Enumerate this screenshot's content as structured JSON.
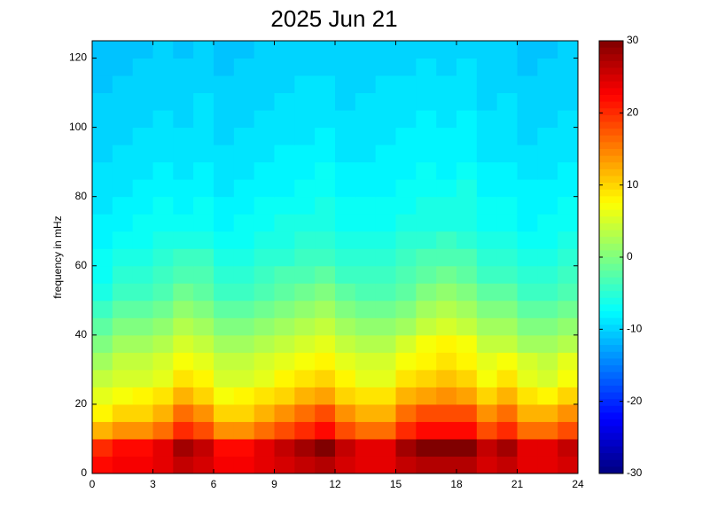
{
  "chart_data": {
    "type": "heatmap",
    "title": "2025 Jun 21",
    "ylabel": "frequency in mHz",
    "colormap": "jet",
    "x": [
      0.5,
      1.5,
      2.5,
      3.5,
      4.5,
      5.5,
      6.5,
      7.5,
      8.5,
      9.5,
      10.5,
      11.5,
      12.5,
      13.5,
      14.5,
      15.5,
      16.5,
      17.5,
      18.5,
      19.5,
      20.5,
      21.5,
      22.5,
      23.5
    ],
    "y": [
      2.5,
      7.5,
      12.5,
      17.5,
      22.5,
      27.5,
      32.5,
      37.5,
      42.5,
      47.5,
      52.5,
      57.5,
      62.5,
      67.5,
      72.5,
      77.5,
      82.5,
      87.5,
      92.5,
      97.5,
      102.5,
      107.5,
      112.5,
      117.5,
      122.5
    ],
    "z": [
      [
        22,
        23,
        23,
        24,
        26,
        25,
        23,
        23,
        24,
        25,
        26,
        27,
        25,
        24,
        24,
        26,
        27,
        27,
        27,
        25,
        26,
        24,
        24,
        25
      ],
      [
        20,
        22,
        22,
        24,
        28,
        26,
        22,
        22,
        24,
        26,
        28,
        30,
        26,
        24,
        24,
        28,
        30,
        30,
        30,
        26,
        28,
        24,
        24,
        26
      ],
      [
        12,
        14,
        14,
        16,
        20,
        18,
        14,
        14,
        16,
        18,
        20,
        22,
        18,
        16,
        16,
        20,
        22,
        22,
        22,
        18,
        20,
        16,
        16,
        18
      ],
      [
        8,
        10,
        10,
        12,
        16,
        14,
        10,
        10,
        12,
        14,
        16,
        18,
        14,
        12,
        12,
        16,
        18,
        18,
        18,
        14,
        16,
        12,
        12,
        14
      ],
      [
        6,
        7,
        8,
        9,
        12,
        10,
        7,
        8,
        9,
        10,
        12,
        13,
        10,
        9,
        9,
        12,
        13,
        14,
        13,
        10,
        12,
        9,
        8,
        10
      ],
      [
        4,
        5,
        5,
        6,
        9,
        8,
        5,
        5,
        6,
        8,
        9,
        10,
        8,
        6,
        6,
        9,
        10,
        11,
        10,
        7,
        9,
        6,
        5,
        7
      ],
      [
        2,
        4,
        4,
        5,
        7,
        6,
        4,
        4,
        5,
        6,
        7,
        8,
        6,
        5,
        5,
        7,
        8,
        9,
        8,
        6,
        7,
        5,
        4,
        6
      ],
      [
        0,
        2,
        2,
        3,
        5,
        4,
        2,
        2,
        3,
        4,
        5,
        6,
        4,
        3,
        3,
        5,
        7,
        8,
        7,
        4,
        4,
        2,
        2,
        3
      ],
      [
        -2,
        0,
        0,
        1,
        3,
        2,
        0,
        0,
        1,
        2,
        3,
        4,
        2,
        1,
        1,
        2,
        4,
        5,
        4,
        2,
        2,
        0,
        0,
        1
      ],
      [
        -4,
        -2,
        -2,
        -1,
        1,
        0,
        -2,
        -2,
        -1,
        0,
        1,
        2,
        0,
        -1,
        -1,
        0,
        2,
        3,
        2,
        0,
        0,
        -2,
        -2,
        -1
      ],
      [
        -6,
        -4,
        -4,
        -3,
        -1,
        -2,
        -4,
        -4,
        -3,
        -2,
        -1,
        0,
        -2,
        -3,
        -3,
        -2,
        0,
        1,
        0,
        -2,
        -2,
        -4,
        -4,
        -3
      ],
      [
        -7,
        -5,
        -5,
        -4,
        -3,
        -3,
        -5,
        -5,
        -4,
        -3,
        -3,
        -2,
        -4,
        -4,
        -4,
        -3,
        -2,
        -1,
        -2,
        -4,
        -4,
        -5,
        -5,
        -4
      ],
      [
        -7,
        -6,
        -6,
        -5,
        -4,
        -4,
        -6,
        -6,
        -5,
        -5,
        -4,
        -4,
        -5,
        -5,
        -5,
        -4,
        -3,
        -3,
        -3,
        -5,
        -5,
        -6,
        -6,
        -5
      ],
      [
        -8,
        -7,
        -7,
        -6,
        -6,
        -6,
        -7,
        -7,
        -6,
        -6,
        -5,
        -5,
        -6,
        -6,
        -6,
        -5,
        -5,
        -4,
        -5,
        -6,
        -6,
        -7,
        -7,
        -6
      ],
      [
        -8,
        -8,
        -7,
        -7,
        -7,
        -7,
        -8,
        -7,
        -7,
        -6,
        -6,
        -6,
        -7,
        -7,
        -7,
        -6,
        -6,
        -6,
        -6,
        -7,
        -7,
        -8,
        -7,
        -7
      ],
      [
        -9,
        -8,
        -8,
        -7,
        -8,
        -7,
        -8,
        -8,
        -7,
        -7,
        -7,
        -6,
        -7,
        -7,
        -7,
        -7,
        -6,
        -6,
        -6,
        -7,
        -7,
        -8,
        -8,
        -7
      ],
      [
        -9,
        -9,
        -8,
        -8,
        -8,
        -8,
        -9,
        -8,
        -8,
        -8,
        -7,
        -7,
        -8,
        -8,
        -8,
        -7,
        -7,
        -7,
        -6,
        -8,
        -8,
        -8,
        -8,
        -8
      ],
      [
        -9,
        -9,
        -9,
        -8,
        -9,
        -8,
        -9,
        -9,
        -8,
        -8,
        -8,
        -7,
        -8,
        -8,
        -8,
        -8,
        -7,
        -8,
        -7,
        -8,
        -8,
        -9,
        -9,
        -8
      ],
      [
        -10,
        -9,
        -9,
        -9,
        -9,
        -9,
        -9,
        -9,
        -9,
        -8,
        -8,
        -8,
        -9,
        -9,
        -8,
        -8,
        -8,
        -8,
        -8,
        -9,
        -9,
        -9,
        -9,
        -9
      ],
      [
        -10,
        -10,
        -9,
        -9,
        -9,
        -9,
        -10,
        -9,
        -9,
        -9,
        -9,
        -8,
        -9,
        -9,
        -9,
        -8,
        -8,
        -8,
        -8,
        -9,
        -9,
        -10,
        -9,
        -9
      ],
      [
        -10,
        -10,
        -10,
        -9,
        -10,
        -9,
        -10,
        -10,
        -9,
        -9,
        -9,
        -9,
        -9,
        -9,
        -9,
        -9,
        -8,
        -9,
        -8,
        -9,
        -9,
        -10,
        -10,
        -9
      ],
      [
        -10,
        -10,
        -10,
        -10,
        -10,
        -9,
        -10,
        -10,
        -10,
        -9,
        -9,
        -9,
        -10,
        -9,
        -9,
        -9,
        -9,
        -9,
        -9,
        -10,
        -9,
        -10,
        -10,
        -10
      ],
      [
        -11,
        -10,
        -10,
        -10,
        -10,
        -10,
        -10,
        -10,
        -10,
        -10,
        -9,
        -9,
        -10,
        -10,
        -9,
        -9,
        -9,
        -9,
        -9,
        -10,
        -10,
        -10,
        -10,
        -10
      ],
      [
        -11,
        -11,
        -10,
        -10,
        -10,
        -10,
        -11,
        -10,
        -10,
        -10,
        -10,
        -10,
        -10,
        -10,
        -10,
        -10,
        -9,
        -10,
        -9,
        -10,
        -10,
        -11,
        -10,
        -10
      ],
      [
        -11,
        -11,
        -11,
        -10,
        -11,
        -10,
        -11,
        -11,
        -10,
        -10,
        -10,
        -10,
        -10,
        -10,
        -10,
        -10,
        -10,
        -10,
        -10,
        -10,
        -10,
        -11,
        -11,
        -10
      ]
    ],
    "xlim": [
      0,
      24
    ],
    "xticks": [
      0,
      3,
      6,
      9,
      12,
      15,
      18,
      21,
      24
    ],
    "ylim": [
      0,
      125
    ],
    "yticks": [
      0,
      20,
      40,
      60,
      80,
      100,
      120
    ],
    "clim": [
      -30,
      30
    ],
    "cticks": [
      -30,
      -20,
      -10,
      0,
      10,
      20,
      30
    ]
  }
}
